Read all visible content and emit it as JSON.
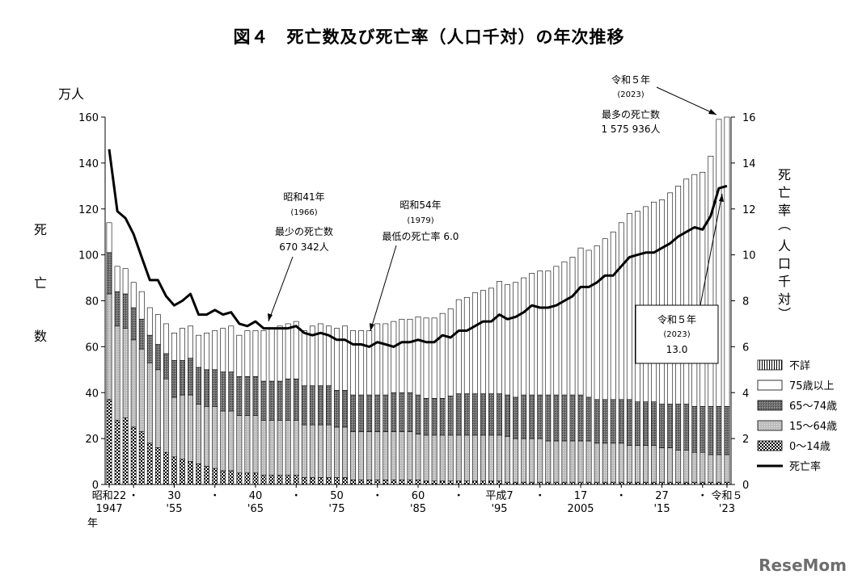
{
  "chart_data": {
    "type": "bar",
    "title": "図４　死亡数及び死亡率（人口千対）の年次推移",
    "left_axis": {
      "unit": "万人",
      "label": "死亡数",
      "ylim": [
        0,
        160
      ],
      "ticks": [
        "0",
        "20",
        "40",
        "60",
        "80",
        "100",
        "120",
        "140",
        "160"
      ]
    },
    "right_axis": {
      "label": "死亡率（人口千対）",
      "ylim": [
        0,
        16
      ],
      "ticks": [
        "0",
        "2",
        "4",
        "6",
        "8",
        "10",
        "12",
        "14",
        "16"
      ]
    },
    "x_axis": {
      "label": "年",
      "ticks": [
        {
          "year": 1947,
          "top": "昭和22",
          "bottom": "1947"
        },
        {
          "year": 1950,
          "top": "・",
          "bottom": ""
        },
        {
          "year": 1955,
          "top": "30",
          "bottom": "'55"
        },
        {
          "year": 1960,
          "top": "・",
          "bottom": ""
        },
        {
          "year": 1965,
          "top": "40",
          "bottom": "'65"
        },
        {
          "year": 1970,
          "top": "・",
          "bottom": ""
        },
        {
          "year": 1975,
          "top": "50",
          "bottom": "'75"
        },
        {
          "year": 1980,
          "top": "・",
          "bottom": ""
        },
        {
          "year": 1985,
          "top": "60",
          "bottom": "'85"
        },
        {
          "year": 1990,
          "top": "・",
          "bottom": ""
        },
        {
          "year": 1995,
          "top": "平成7",
          "bottom": "'95"
        },
        {
          "year": 2000,
          "top": "・",
          "bottom": ""
        },
        {
          "year": 2005,
          "top": "17",
          "bottom": "2005"
        },
        {
          "year": 2010,
          "top": "・",
          "bottom": ""
        },
        {
          "year": 2015,
          "top": "27",
          "bottom": "'15"
        },
        {
          "year": 2020,
          "top": "・",
          "bottom": ""
        },
        {
          "year": 2023,
          "top": "令和５",
          "bottom": "'23"
        }
      ]
    },
    "x": [
      1947,
      1948,
      1949,
      1950,
      1951,
      1952,
      1953,
      1954,
      1955,
      1956,
      1957,
      1958,
      1959,
      1960,
      1961,
      1962,
      1963,
      1964,
      1965,
      1966,
      1967,
      1968,
      1969,
      1970,
      1971,
      1972,
      1973,
      1974,
      1975,
      1976,
      1977,
      1978,
      1979,
      1980,
      1981,
      1982,
      1983,
      1984,
      1985,
      1986,
      1987,
      1988,
      1989,
      1990,
      1991,
      1992,
      1993,
      1994,
      1995,
      1996,
      1997,
      1998,
      1999,
      2000,
      2001,
      2002,
      2003,
      2004,
      2005,
      2006,
      2007,
      2008,
      2009,
      2010,
      2011,
      2012,
      2013,
      2014,
      2015,
      2016,
      2017,
      2018,
      2019,
      2020,
      2021,
      2022,
      2023
    ],
    "series": [
      {
        "name": "0～14歳",
        "values": [
          37,
          28,
          29,
          25,
          23,
          18,
          16,
          14,
          12,
          11,
          10,
          9,
          8,
          7,
          6,
          6,
          5,
          5,
          5,
          4,
          4,
          4,
          4,
          4,
          3,
          3,
          3,
          3,
          3,
          3,
          2,
          2,
          2,
          2,
          2,
          2,
          2,
          2,
          2,
          1.5,
          1.5,
          1.5,
          1.5,
          1.5,
          1.5,
          1.5,
          1.5,
          1.5,
          1.5,
          1,
          1,
          1,
          1,
          1,
          1,
          1,
          1,
          1,
          1,
          1,
          1,
          1,
          1,
          1,
          1,
          1,
          1,
          1,
          1,
          1,
          1,
          1,
          1,
          1,
          1,
          1,
          1
        ]
      },
      {
        "name": "15～64歳",
        "values": [
          46,
          41,
          39,
          38,
          36,
          35,
          34,
          32,
          26,
          28,
          29,
          26,
          26,
          27,
          26,
          26,
          25,
          25,
          25,
          24,
          24,
          24,
          24,
          24,
          23,
          23,
          23,
          23,
          22,
          22,
          21,
          21,
          21,
          21,
          21,
          21,
          21,
          21,
          20,
          20,
          20,
          20,
          20,
          20,
          20,
          20,
          20,
          20,
          20,
          20,
          19,
          19,
          19,
          19,
          18,
          18,
          18,
          18,
          18,
          18,
          17,
          17,
          17,
          17,
          16,
          16,
          16,
          16,
          15,
          15,
          14,
          14,
          13,
          13,
          12,
          12,
          12
        ]
      },
      {
        "name": "65～74歳",
        "values": [
          18,
          15,
          15,
          14,
          13,
          12,
          11,
          11,
          16,
          15,
          16,
          16,
          16,
          16,
          17,
          17,
          17,
          17,
          17,
          17,
          17,
          17,
          18,
          18,
          17,
          17,
          17,
          17,
          16,
          16,
          16,
          16,
          16,
          16,
          16,
          17,
          17,
          17,
          17,
          16,
          16,
          16,
          17,
          18,
          18,
          18,
          18,
          18,
          18,
          18,
          18,
          19,
          19,
          19,
          20,
          20,
          20,
          20,
          20,
          19,
          19,
          19,
          19,
          19,
          20,
          19,
          19,
          19,
          19,
          19,
          20,
          20,
          20,
          20,
          21,
          21,
          21
        ]
      },
      {
        "name": "75歳以上",
        "values": [
          13,
          11,
          11,
          11,
          12,
          12,
          13,
          13,
          12,
          14,
          14,
          14,
          16,
          17,
          19,
          20,
          18,
          20,
          20,
          22,
          23,
          24,
          24,
          25,
          24,
          26,
          27,
          26,
          27,
          28,
          28,
          28,
          28,
          31,
          31,
          31,
          32,
          32,
          34,
          35,
          35,
          37,
          38,
          41,
          42,
          44,
          45,
          46,
          49,
          48,
          50,
          51,
          53,
          54,
          54,
          56,
          58,
          60,
          64,
          64,
          67,
          70,
          73,
          77,
          81,
          83,
          85,
          87,
          89,
          92,
          95,
          98,
          101,
          102,
          109,
          125,
          126
        ]
      },
      {
        "name": "不詳",
        "values": [
          0,
          0,
          0,
          0,
          0,
          0,
          0,
          0,
          0,
          0,
          0,
          0,
          0,
          0,
          0,
          0,
          0,
          0,
          0,
          0,
          0,
          0,
          0,
          0,
          0,
          0,
          0,
          0,
          0,
          0,
          0,
          0,
          0,
          0,
          0,
          0,
          0,
          0,
          0,
          0,
          0,
          0,
          0,
          0,
          0,
          0,
          0,
          0,
          0,
          0,
          0,
          0,
          0,
          0,
          0,
          0,
          0,
          0,
          0,
          0,
          0,
          0,
          0,
          0,
          0,
          0,
          0,
          0,
          0,
          0,
          0,
          0,
          0,
          0,
          0,
          0,
          0
        ]
      }
    ],
    "rate_series": {
      "name": "死亡率",
      "values": [
        14.6,
        11.9,
        11.6,
        10.9,
        9.9,
        8.9,
        8.9,
        8.2,
        7.8,
        8.0,
        8.3,
        7.4,
        7.4,
        7.6,
        7.4,
        7.5,
        7.0,
        6.9,
        7.1,
        6.8,
        6.8,
        6.8,
        6.8,
        6.9,
        6.6,
        6.5,
        6.6,
        6.5,
        6.3,
        6.3,
        6.1,
        6.1,
        6.0,
        6.2,
        6.1,
        6.0,
        6.2,
        6.2,
        6.3,
        6.2,
        6.2,
        6.5,
        6.4,
        6.7,
        6.7,
        6.9,
        7.1,
        7.1,
        7.4,
        7.2,
        7.3,
        7.5,
        7.8,
        7.7,
        7.7,
        7.8,
        8.0,
        8.2,
        8.6,
        8.6,
        8.8,
        9.1,
        9.1,
        9.5,
        9.9,
        10.0,
        10.1,
        10.1,
        10.3,
        10.5,
        10.8,
        11.0,
        11.2,
        11.1,
        11.7,
        12.9,
        13.0
      ]
    },
    "annotations": [
      {
        "lines": [
          "令和５年",
          "(2023)",
          "最多の死亡数",
          "1 575 936人"
        ]
      },
      {
        "lines": [
          "昭和41年",
          "(1966)",
          "最少の死亡数",
          "670 342人"
        ]
      },
      {
        "lines": [
          "昭和54年",
          "(1979)",
          "最低の死亡率 6.0"
        ]
      },
      {
        "lines": [
          "令和５年",
          "(2023)",
          "13.0"
        ]
      }
    ],
    "legend": {
      "position": "right",
      "items": [
        "不詳",
        "75歳以上",
        "65～74歳",
        "15～64歳",
        "0～14歳",
        "死亡率"
      ]
    }
  },
  "watermark": "ReseMom"
}
